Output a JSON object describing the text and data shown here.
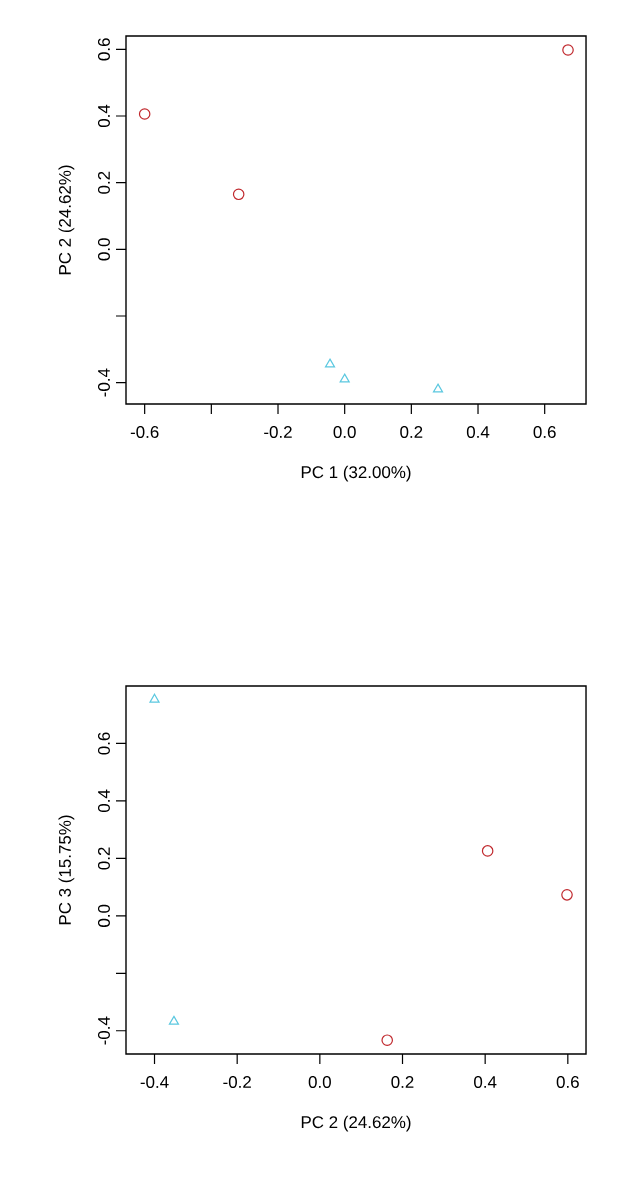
{
  "chart_data": [
    {
      "type": "scatter",
      "xlabel": "PC 1 (32.00%)",
      "ylabel": "PC 2 (24.62%)",
      "xlim": [
        -0.656,
        0.724
      ],
      "ylim": [
        -0.464,
        0.64
      ],
      "xticks": [
        {
          "value": -0.6,
          "label": "-0.6"
        },
        {
          "value": -0.4,
          "label": null
        },
        {
          "value": -0.2,
          "label": "-0.2"
        },
        {
          "value": 0,
          "label": "0.0"
        },
        {
          "value": 0.2,
          "label": "0.2"
        },
        {
          "value": 0.4,
          "label": "0.4"
        },
        {
          "value": 0.6,
          "label": "0.6"
        }
      ],
      "yticks": [
        {
          "value": -0.4,
          "label": "-0.4"
        },
        {
          "value": -0.2,
          "label": null
        },
        {
          "value": 0,
          "label": "0.0"
        },
        {
          "value": 0.2,
          "label": "0.2"
        },
        {
          "value": 0.4,
          "label": "0.4"
        },
        {
          "value": 0.6,
          "label": "0.6"
        }
      ],
      "series": [
        {
          "color": "#c0282d",
          "marker": "circle",
          "x": [
            -0.6,
            -0.318,
            0.67
          ],
          "values": [
            0.406,
            0.165,
            0.598
          ]
        },
        {
          "color": "#5bc8e0",
          "marker": "triangle",
          "x": [
            -0.044,
            0.0,
            0.28
          ],
          "values": [
            -0.345,
            -0.39,
            -0.42
          ]
        }
      ]
    },
    {
      "type": "scatter",
      "xlabel": "PC 2 (24.62%)",
      "ylabel": "PC 3 (15.75%)",
      "xlim": [
        -0.469,
        0.644
      ],
      "ylim": [
        -0.481,
        0.8
      ],
      "xticks": [
        {
          "value": -0.4,
          "label": "-0.4"
        },
        {
          "value": -0.2,
          "label": "-0.2"
        },
        {
          "value": 0,
          "label": "0.0"
        },
        {
          "value": 0.2,
          "label": "0.2"
        },
        {
          "value": 0.4,
          "label": "0.4"
        },
        {
          "value": 0.6,
          "label": "0.6"
        }
      ],
      "yticks": [
        {
          "value": -0.4,
          "label": "-0.4"
        },
        {
          "value": -0.2,
          "label": null
        },
        {
          "value": 0,
          "label": "0.0"
        },
        {
          "value": 0.2,
          "label": "0.2"
        },
        {
          "value": 0.4,
          "label": "0.4"
        },
        {
          "value": 0.6,
          "label": "0.6"
        }
      ],
      "series": [
        {
          "color": "#c0282d",
          "marker": "circle",
          "x": [
            0.163,
            0.406,
            0.598
          ],
          "values": [
            -0.433,
            0.226,
            0.073
          ]
        },
        {
          "color": "#5bc8e0",
          "marker": "triangle",
          "x": [
            -0.4,
            -0.353
          ],
          "values": [
            0.753,
            -0.368
          ]
        }
      ]
    }
  ]
}
